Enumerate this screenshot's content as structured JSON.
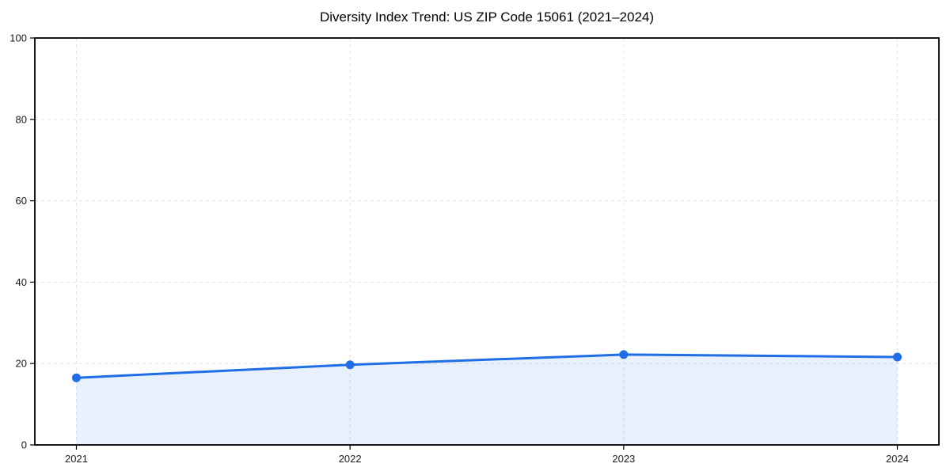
{
  "chart_data": {
    "type": "area",
    "title": "Diversity Index Trend: US ZIP Code 15061 (2021–2024)",
    "x": [
      "2021",
      "2022",
      "2023",
      "2024"
    ],
    "series": [
      {
        "name": "Diversity Index",
        "values": [
          16.5,
          19.7,
          22.2,
          21.6
        ]
      }
    ],
    "xlabel": "",
    "ylabel": "",
    "ylim": [
      0,
      100
    ],
    "yticks": [
      0,
      20,
      40,
      60,
      80,
      100
    ],
    "grid": true,
    "grid_style": "dashed",
    "legend": null,
    "colors": {
      "line": "#1f6ee6",
      "marker": "#1f6ee6",
      "fill": "#1f6ee6",
      "fill_opacity": 0.1,
      "grid": "#e2e2e2",
      "axis": "#000000",
      "tick_label": "#1a1a1a",
      "title": "#000000",
      "background": "#ffffff"
    }
  }
}
